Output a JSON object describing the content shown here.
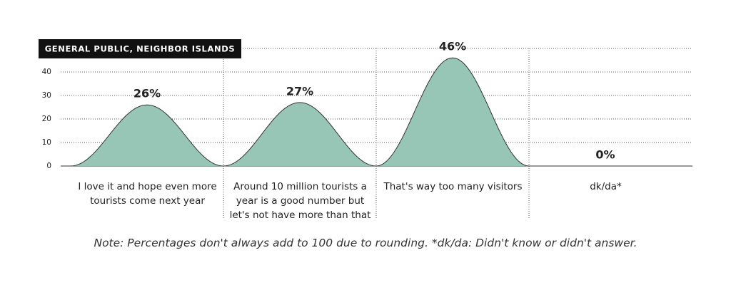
{
  "chart_data": {
    "type": "bell",
    "subtitle": "GENERAL PUBLIC, NEIGHBOR ISLANDS",
    "categories": [
      "I love it and hope even more tourists come next year",
      "Around 10 million tourists a year is a good number but let's not have more than that",
      "That's way too many visitors",
      "dk/da*"
    ],
    "values": [
      26,
      27,
      46,
      0
    ],
    "value_labels": [
      "26%",
      "27%",
      "46%",
      "0%"
    ],
    "color": "#97c6b7",
    "ylim": [
      0,
      50
    ],
    "yticks": [
      0,
      10,
      20,
      30,
      40
    ],
    "grid": true,
    "note": "Note: Percentages don't always add to 100 due to rounding. *dk/da: Didn't know or didn't answer."
  }
}
